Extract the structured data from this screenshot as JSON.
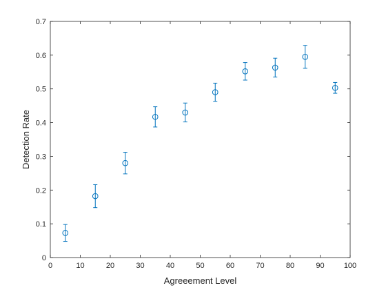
{
  "chart_data": {
    "type": "scatter",
    "xlabel": "Agreeement Level",
    "ylabel": "Detection Rate",
    "xlim": [
      0,
      100
    ],
    "ylim": [
      0,
      0.7
    ],
    "xticks": [
      "0",
      "10",
      "20",
      "30",
      "40",
      "50",
      "60",
      "70",
      "80",
      "90",
      "100"
    ],
    "yticks": [
      "0",
      "0.1",
      "0.2",
      "0.3",
      "0.4",
      "0.5",
      "0.6",
      "0.7"
    ],
    "grid": false,
    "color": "#0072BD",
    "points": [
      {
        "x": 5,
        "y": 0.073,
        "err_low": 0.025,
        "err_high": 0.025
      },
      {
        "x": 15,
        "y": 0.182,
        "err_low": 0.034,
        "err_high": 0.034
      },
      {
        "x": 25,
        "y": 0.28,
        "err_low": 0.032,
        "err_high": 0.032
      },
      {
        "x": 35,
        "y": 0.417,
        "err_low": 0.03,
        "err_high": 0.03
      },
      {
        "x": 45,
        "y": 0.43,
        "err_low": 0.028,
        "err_high": 0.028
      },
      {
        "x": 55,
        "y": 0.49,
        "err_low": 0.027,
        "err_high": 0.027
      },
      {
        "x": 65,
        "y": 0.552,
        "err_low": 0.026,
        "err_high": 0.026
      },
      {
        "x": 75,
        "y": 0.563,
        "err_low": 0.028,
        "err_high": 0.028
      },
      {
        "x": 85,
        "y": 0.595,
        "err_low": 0.034,
        "err_high": 0.034
      },
      {
        "x": 95,
        "y": 0.503,
        "err_low": 0.016,
        "err_high": 0.016
      }
    ]
  }
}
